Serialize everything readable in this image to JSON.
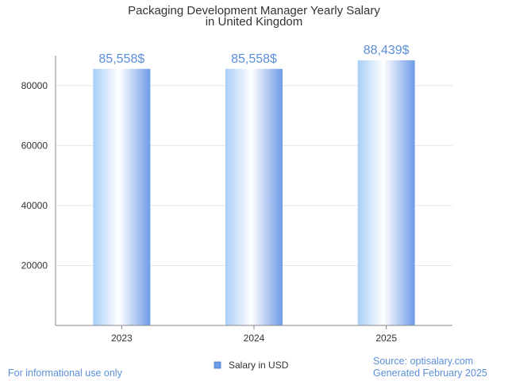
{
  "chart_data": {
    "type": "bar",
    "title_lines": [
      "Packaging Development Manager Yearly Salary",
      "in United Kingdom"
    ],
    "categories": [
      "2023",
      "2024",
      "2025"
    ],
    "series": [
      {
        "name": "Salary in USD",
        "values": [
          85558,
          85558,
          88439
        ],
        "labels": [
          "85,558$",
          "85,558$",
          "88,439$"
        ]
      }
    ],
    "yticks": [
      20000,
      40000,
      60000,
      80000
    ],
    "ylim": [
      0,
      90000
    ],
    "grid": true,
    "legend_position": "bottom-center"
  },
  "footer": {
    "left": "For informational use only",
    "source": "Source: optisalary.com",
    "generated": "Generated February 2025"
  },
  "colors": {
    "bar_edge": "#6f9be8",
    "bar_light": "#ffffff",
    "label": "#5b8fd9",
    "axis": "#888888",
    "grid": "#e6e6e6",
    "legend_swatch": "#6f9be8"
  }
}
